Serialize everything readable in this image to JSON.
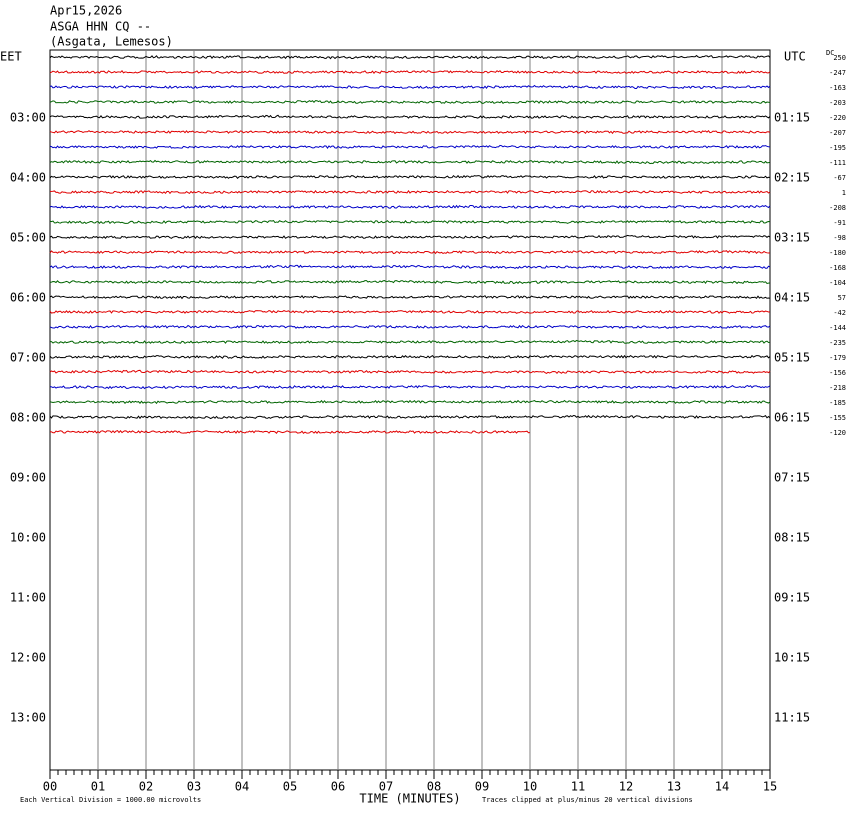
{
  "header": {
    "date": "Apr15,2026",
    "station": "ASGA HHN CQ --",
    "location": "(Asgata, Lemesos)"
  },
  "left_timezone": "EET",
  "right_timezone": "UTC",
  "dc_label": "DC",
  "left_hours": [
    "03:00",
    "04:00",
    "05:00",
    "06:00",
    "07:00",
    "08:00",
    "09:00",
    "10:00",
    "11:00",
    "12:00",
    "13:00"
  ],
  "right_hours": [
    "01:15",
    "02:15",
    "03:15",
    "04:15",
    "05:15",
    "06:15",
    "07:15",
    "08:15",
    "09:15",
    "10:15",
    "11:15"
  ],
  "x_ticks": [
    "00",
    "01",
    "02",
    "03",
    "04",
    "05",
    "06",
    "07",
    "08",
    "09",
    "10",
    "11",
    "12",
    "13",
    "14",
    "15"
  ],
  "x_label": "TIME (MINUTES)",
  "scale_note": "Each Vertical Division = 1000.00 microvolts",
  "clip_note": "Traces clipped at plus/minus 20 vertical divisions",
  "traces": [
    {
      "dc": 250,
      "color": "#000000"
    },
    {
      "dc": -247,
      "color": "#e00000"
    },
    {
      "dc": -163,
      "color": "#0000c8"
    },
    {
      "dc": -203,
      "color": "#006400"
    },
    {
      "dc": -220,
      "color": "#000000"
    },
    {
      "dc": -207,
      "color": "#e00000"
    },
    {
      "dc": -195,
      "color": "#0000c8"
    },
    {
      "dc": -111,
      "color": "#006400"
    },
    {
      "dc": -67,
      "color": "#000000"
    },
    {
      "dc": 1,
      "color": "#e00000"
    },
    {
      "dc": -208,
      "color": "#0000c8"
    },
    {
      "dc": -91,
      "color": "#006400"
    },
    {
      "dc": -98,
      "color": "#000000"
    },
    {
      "dc": -180,
      "color": "#e00000"
    },
    {
      "dc": -168,
      "color": "#0000c8"
    },
    {
      "dc": -104,
      "color": "#006400"
    },
    {
      "dc": 57,
      "color": "#000000"
    },
    {
      "dc": -42,
      "color": "#e00000"
    },
    {
      "dc": -144,
      "color": "#0000c8"
    },
    {
      "dc": -235,
      "color": "#006400"
    },
    {
      "dc": -179,
      "color": "#000000"
    },
    {
      "dc": -156,
      "color": "#e00000"
    },
    {
      "dc": -218,
      "color": "#0000c8"
    },
    {
      "dc": -185,
      "color": "#006400"
    },
    {
      "dc": -155,
      "color": "#000000"
    },
    {
      "dc": -120,
      "color": "#e00000",
      "end": 10
    }
  ]
}
